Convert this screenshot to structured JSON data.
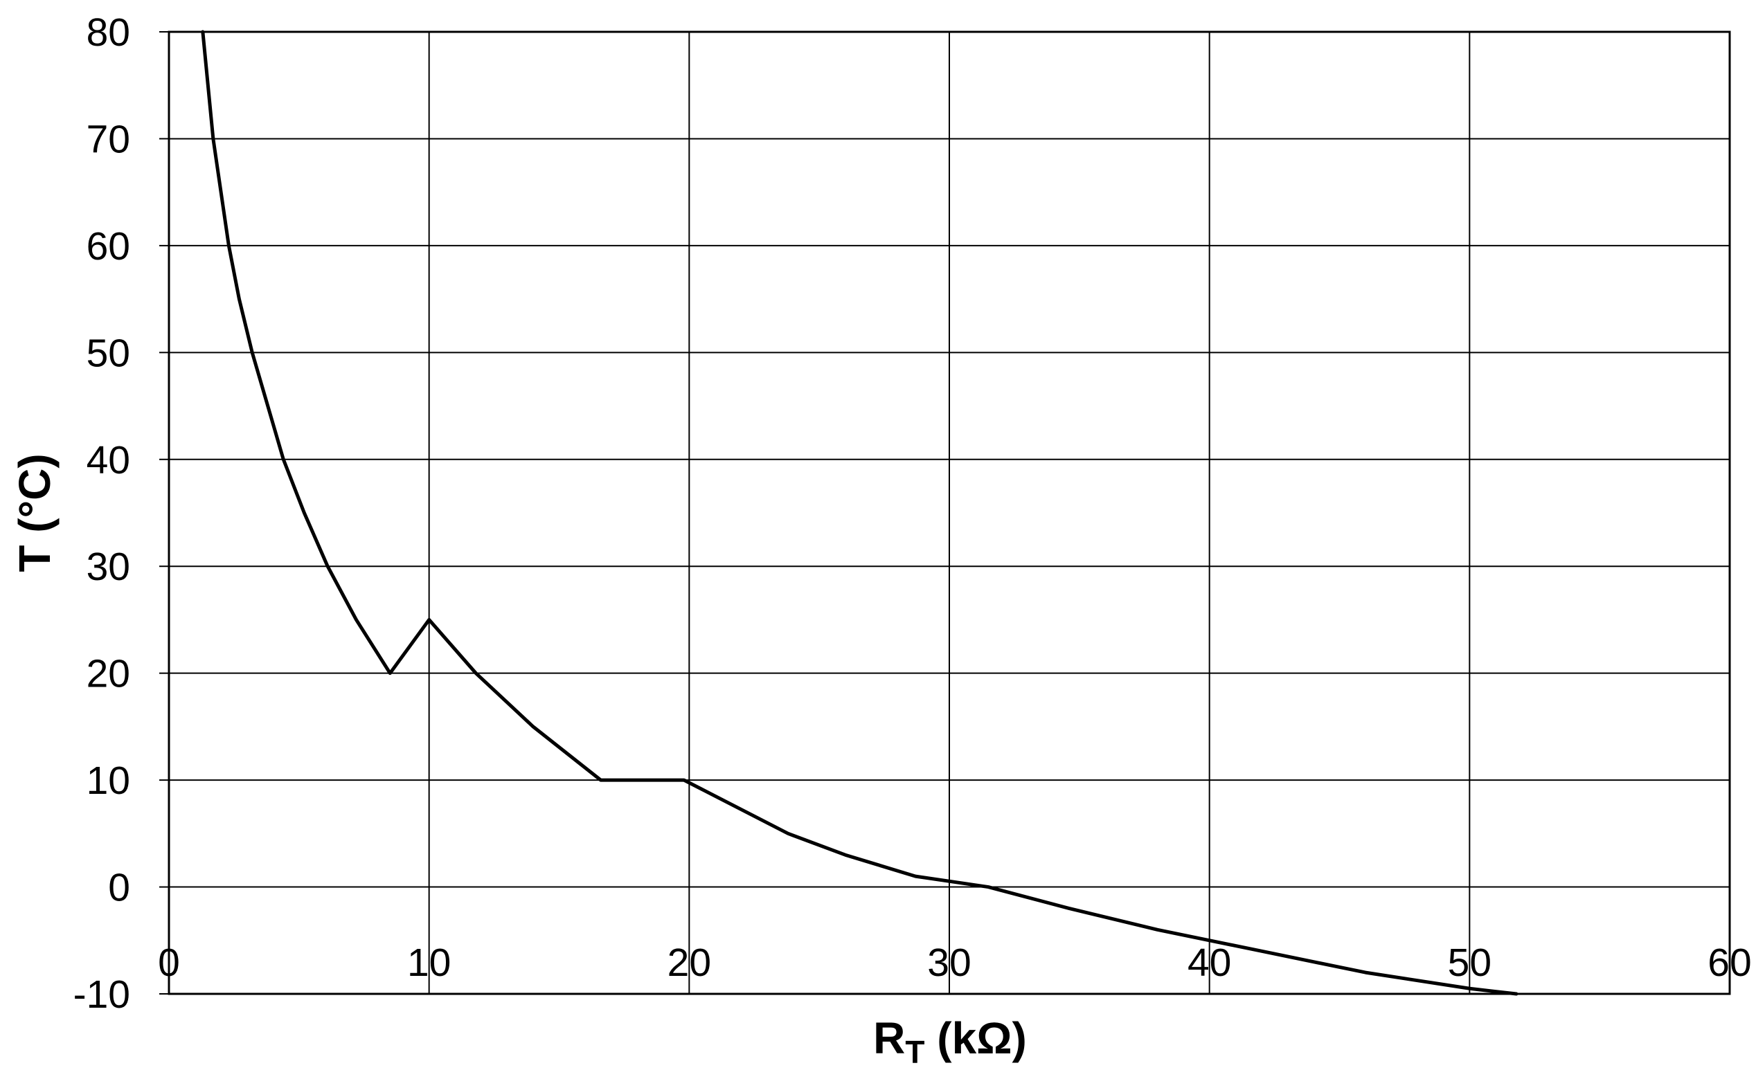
{
  "chart_data": {
    "type": "line",
    "title": "",
    "xlabel": {
      "main": "R",
      "subscript": "T",
      "unit": " (kΩ)"
    },
    "ylabel": "T (°C)",
    "xlim": [
      0,
      60
    ],
    "ylim": [
      -10,
      80
    ],
    "xticks": [
      0,
      10,
      20,
      30,
      40,
      50,
      60
    ],
    "yticks": [
      -10,
      0,
      10,
      20,
      30,
      40,
      50,
      60,
      70,
      80
    ],
    "x_tick_labels": [
      "0",
      "10",
      "20",
      "30",
      "40",
      "50",
      "60"
    ],
    "y_tick_labels": [
      "-10",
      "0",
      "10",
      "20",
      "30",
      "40",
      "50",
      "60",
      "70",
      "80"
    ],
    "grid": true,
    "series": [
      {
        "color": "#000000",
        "x": [
          1.3,
          1.7,
          2.3,
          2.7,
          3.2,
          3.8,
          4.4,
          5.2,
          6.1,
          7.2,
          8.5,
          10.0,
          11.8,
          14.0,
          16.6,
          19.8,
          23.8,
          26.0,
          28.7,
          31.5,
          34.6,
          38.0,
          42.0,
          46.0,
          50.0,
          51.8
        ],
        "y": [
          80,
          70,
          60,
          55,
          50,
          45,
          40,
          35,
          30,
          25,
          20,
          25,
          20,
          15,
          10,
          10,
          5,
          3,
          1,
          0,
          -2,
          -4,
          -6,
          -8,
          -9.5,
          -10
        ]
      }
    ]
  }
}
